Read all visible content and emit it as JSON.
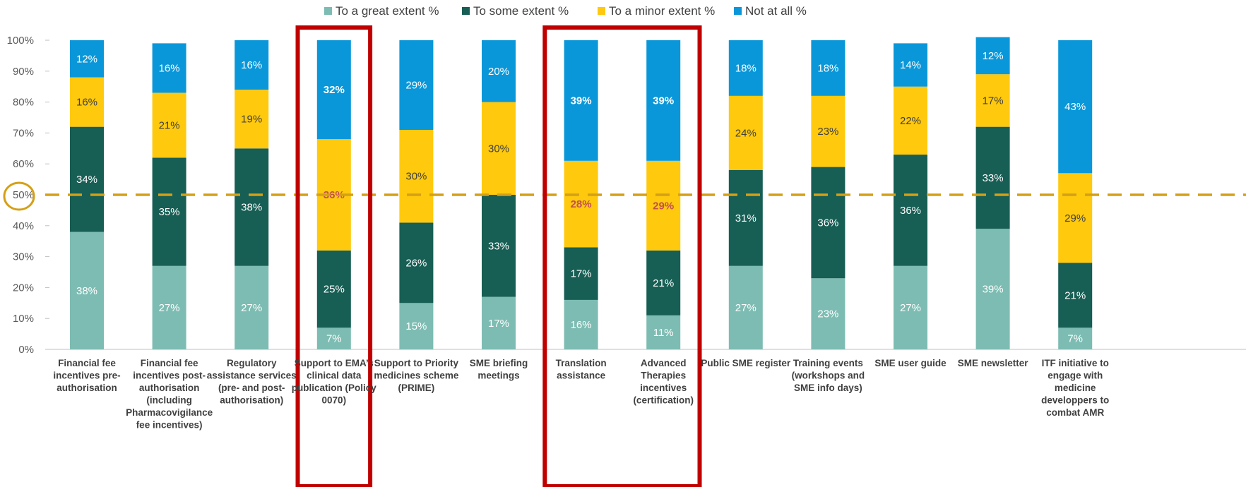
{
  "chart_data": {
    "type": "bar",
    "stacked": true,
    "ylim": [
      0,
      100
    ],
    "ytick_labels": [
      "0%",
      "10%",
      "20%",
      "30%",
      "40%",
      "50%",
      "60%",
      "70%",
      "80%",
      "90%",
      "100%"
    ],
    "reference_line": {
      "value": 50,
      "label": "50%",
      "style": "dashed",
      "color": "#d4a017"
    },
    "legend_position": "top",
    "categories": [
      [
        "Financial fee",
        "incentives pre-",
        "authorisation"
      ],
      [
        "Financial fee",
        "incentives post-",
        "authorisation",
        "(including",
        "Pharmacovigilance",
        "fee incentives)"
      ],
      [
        "Regulatory",
        "assistance services",
        "(pre- and post-",
        "authorisation)"
      ],
      [
        "Support to EMA’s",
        "clinical data",
        "publication (Policy",
        "0070)"
      ],
      [
        "Support to Priority",
        "medicines scheme",
        "(PRIME)"
      ],
      [
        "SME briefing",
        "meetings"
      ],
      [
        "Translation",
        "assistance"
      ],
      [
        "Advanced",
        "Therapies",
        "incentives",
        "(certification)"
      ],
      [
        "Public SME register"
      ],
      [
        "Training events",
        "(workshops and",
        "SME info days)"
      ],
      [
        "SME user guide"
      ],
      [
        "SME newsletter"
      ],
      [
        "ITF initiative to",
        "engage with",
        "medicine",
        "developpers to",
        "combat AMR"
      ]
    ],
    "series": [
      {
        "name": "To a great extent %",
        "color": "#7dbcb2",
        "label_color": "#ffffff",
        "values": [
          38,
          27,
          27,
          7,
          15,
          17,
          16,
          11,
          27,
          23,
          27,
          39,
          7
        ]
      },
      {
        "name": "To some extent %",
        "color": "#175e54",
        "label_color": "#ffffff",
        "values": [
          34,
          35,
          38,
          25,
          26,
          33,
          17,
          21,
          31,
          36,
          36,
          33,
          21
        ]
      },
      {
        "name": "To a minor extent %",
        "color": "#ffc90e",
        "label_color": "#404040",
        "values": [
          16,
          21,
          19,
          36,
          30,
          30,
          28,
          29,
          24,
          23,
          22,
          17,
          29
        ]
      },
      {
        "name": "Not at all %",
        "color": "#0a97d9",
        "label_color": "#ffffff",
        "values": [
          12,
          16,
          16,
          32,
          29,
          20,
          39,
          39,
          18,
          18,
          14,
          12,
          43
        ]
      }
    ],
    "highlighted_groups": [
      [
        3
      ],
      [
        6,
        7
      ]
    ],
    "highlight_color": "#c00000",
    "emphasized_labels": [
      {
        "category": 3,
        "series": 2,
        "color": "#c0504d"
      },
      {
        "category": 3,
        "series": 3,
        "color": "#ffffff"
      },
      {
        "category": 6,
        "series": 2,
        "color": "#c0504d"
      },
      {
        "category": 6,
        "series": 3,
        "color": "#ffffff"
      },
      {
        "category": 7,
        "series": 2,
        "color": "#c0504d"
      },
      {
        "category": 7,
        "series": 3,
        "color": "#ffffff"
      }
    ]
  }
}
